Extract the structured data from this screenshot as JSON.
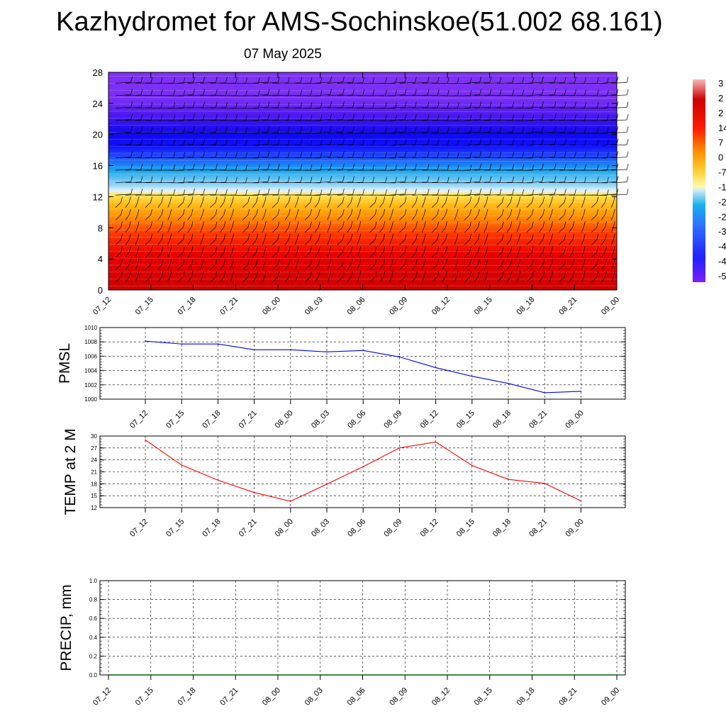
{
  "title": "Kazhydromet for AMS-Sochinskoe(51.002 68.161)",
  "subtitle": "07 May 2025",
  "time_labels": [
    "07_12",
    "07_15",
    "07_18",
    "07_21",
    "08_00",
    "08_03",
    "08_06",
    "08_09",
    "08_12",
    "08_15",
    "08_18",
    "08_21",
    "09_00"
  ],
  "colorbar_labels": [
    "3",
    "2",
    "2",
    "14",
    "7",
    "0",
    "-7",
    "-1",
    "-2",
    "-2",
    "-3",
    "-4",
    "-4",
    "-5"
  ],
  "chart_data": [
    {
      "type": "heatmap",
      "title": "",
      "xlabel": "",
      "ylabel": "",
      "ylim": [
        0,
        28
      ],
      "y_ticks": [
        0,
        4,
        8,
        12,
        16,
        20,
        24,
        28
      ],
      "note_palette": [
        "#ff0000",
        "#ffee66",
        "#00b0f0",
        "#0000ff",
        "#7a1fff"
      ],
      "layers": [
        {
          "y_from": 0,
          "y_to": 6,
          "color": "#d80000"
        },
        {
          "y_from": 6,
          "y_to": 9,
          "color": "#ff6a00"
        },
        {
          "y_from": 9,
          "y_to": 12.7,
          "color": "#ffcc33"
        },
        {
          "y_from": 12.7,
          "y_to": 17,
          "color": "#2fb5f0"
        },
        {
          "y_from": 17,
          "y_to": 22.5,
          "color": "#1010ff"
        },
        {
          "y_from": 22.5,
          "y_to": 28,
          "color": "#7b2ff7"
        }
      ]
    },
    {
      "type": "line",
      "ylabel": "PMSL",
      "ylim": [
        1000,
        1010
      ],
      "y_ticks": [
        1000,
        1002,
        1004,
        1006,
        1008,
        1010
      ],
      "color": "#0000ff",
      "values": [
        1008.1,
        1007.7,
        1007.7,
        1006.9,
        1006.9,
        1006.6,
        1006.8,
        1005.9,
        1004.4,
        1003.2,
        1002.2,
        1000.9,
        1001.1
      ]
    },
    {
      "type": "line",
      "ylabel": "TEMP at 2 M",
      "ylim": [
        12,
        30
      ],
      "y_ticks": [
        12,
        15,
        18,
        21,
        24,
        27,
        30
      ],
      "color": "#ff0000",
      "values": [
        29.0,
        22.7,
        18.9,
        15.8,
        13.6,
        17.9,
        22.3,
        27.0,
        28.5,
        22.6,
        19.1,
        18.1,
        13.7
      ]
    },
    {
      "type": "line",
      "ylabel": "PRECIP, mm",
      "ylim": [
        0,
        1.0
      ],
      "y_ticks": [
        "0.0",
        "0.2",
        "0.4",
        "0.6",
        "0.8",
        "1.0"
      ],
      "color": "#006400",
      "values": [
        0,
        0,
        0,
        0,
        0,
        0,
        0,
        0,
        0,
        0,
        0,
        0,
        0
      ]
    }
  ]
}
